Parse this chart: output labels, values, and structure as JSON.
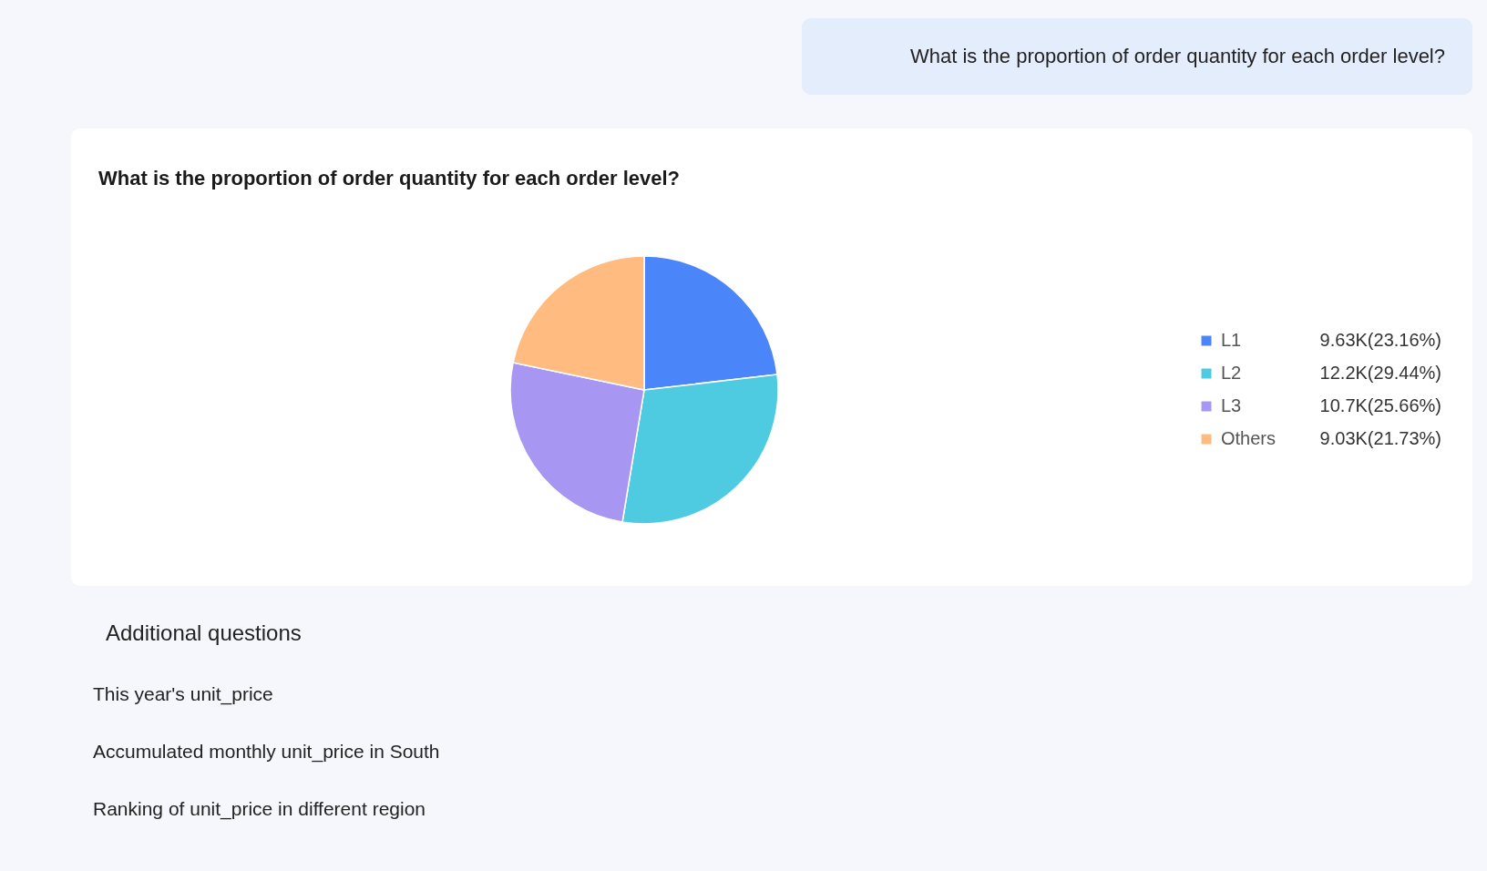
{
  "chart_data": {
    "type": "pie",
    "title": "What is the proportion of order quantity for each order level?",
    "categories": [
      "L1",
      "L2",
      "L3",
      "Others"
    ],
    "values": [
      23.16,
      29.44,
      25.66,
      21.73
    ],
    "colors": [
      "#4a86fa",
      "#4ecbe0",
      "#a797f3",
      "#ffbb80"
    ],
    "value_labels": [
      "9.63K(23.16%)",
      "12.2K(29.44%)",
      "10.7K(25.66%)",
      "9.03K(21.73%)"
    ],
    "legend": "right",
    "annotations": [
      "What is the proportion of order quantity for each order level?",
      "Additional questions",
      "This year's unit_price",
      "Accumulated monthly unit_price in South",
      "Ranking of unit_price in different region"
    ]
  }
}
